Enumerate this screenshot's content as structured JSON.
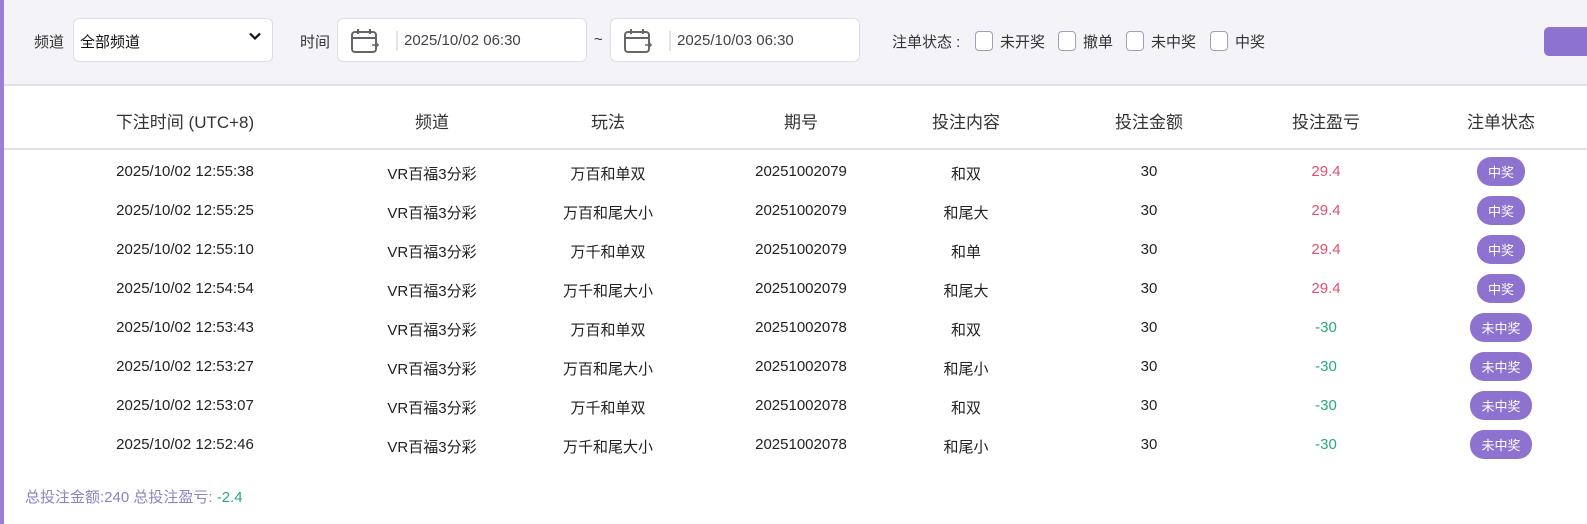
{
  "filters": {
    "channel_label": "频道",
    "channel_value": "全部频道",
    "time_label": "时间",
    "start_time": "2025/10/02 06:30",
    "range_sep": "~",
    "end_time": "2025/10/03 06:30",
    "status_label": "注单状态 :",
    "status_options": [
      {
        "label": "未开奖",
        "checked": false
      },
      {
        "label": "撤单",
        "checked": false
      },
      {
        "label": "未中奖",
        "checked": false
      },
      {
        "label": "中奖",
        "checked": false
      }
    ],
    "action_button_label": ""
  },
  "columns": [
    "下注时间 (UTC+8)",
    "频道",
    "玩法",
    "期号",
    "投注内容",
    "投注金额",
    "投注盈亏",
    "注单状态"
  ],
  "rows": [
    {
      "time": "2025/10/02 12:55:38",
      "channel": "VR百福3分彩",
      "play": "万百和单双",
      "issue": "20251002079",
      "content": "和双",
      "amount": "30",
      "profit": "29.4",
      "status": "中奖",
      "sign": "pos"
    },
    {
      "time": "2025/10/02 12:55:25",
      "channel": "VR百福3分彩",
      "play": "万百和尾大小",
      "issue": "20251002079",
      "content": "和尾大",
      "amount": "30",
      "profit": "29.4",
      "status": "中奖",
      "sign": "pos"
    },
    {
      "time": "2025/10/02 12:55:10",
      "channel": "VR百福3分彩",
      "play": "万千和单双",
      "issue": "20251002079",
      "content": "和单",
      "amount": "30",
      "profit": "29.4",
      "status": "中奖",
      "sign": "pos"
    },
    {
      "time": "2025/10/02 12:54:54",
      "channel": "VR百福3分彩",
      "play": "万千和尾大小",
      "issue": "20251002079",
      "content": "和尾大",
      "amount": "30",
      "profit": "29.4",
      "status": "中奖",
      "sign": "pos"
    },
    {
      "time": "2025/10/02 12:53:43",
      "channel": "VR百福3分彩",
      "play": "万百和单双",
      "issue": "20251002078",
      "content": "和双",
      "amount": "30",
      "profit": "-30",
      "status": "未中奖",
      "sign": "neg"
    },
    {
      "time": "2025/10/02 12:53:27",
      "channel": "VR百福3分彩",
      "play": "万百和尾大小",
      "issue": "20251002078",
      "content": "和尾小",
      "amount": "30",
      "profit": "-30",
      "status": "未中奖",
      "sign": "neg"
    },
    {
      "time": "2025/10/02 12:53:07",
      "channel": "VR百福3分彩",
      "play": "万千和单双",
      "issue": "20251002078",
      "content": "和双",
      "amount": "30",
      "profit": "-30",
      "status": "未中奖",
      "sign": "neg"
    },
    {
      "time": "2025/10/02 12:52:46",
      "channel": "VR百福3分彩",
      "play": "万千和尾大小",
      "issue": "20251002078",
      "content": "和尾小",
      "amount": "30",
      "profit": "-30",
      "status": "未中奖",
      "sign": "neg"
    }
  ],
  "summary": {
    "total_amount_text": "总投注金额:240 总投注盈亏:",
    "total_profit": "-2.4"
  },
  "colors": {
    "accent": "#8e72d0",
    "profit_positive": "#e0506e",
    "profit_negative": "#2aa876"
  },
  "icons": {
    "select": "chevron-down-icon",
    "date": "calendar-icon"
  }
}
